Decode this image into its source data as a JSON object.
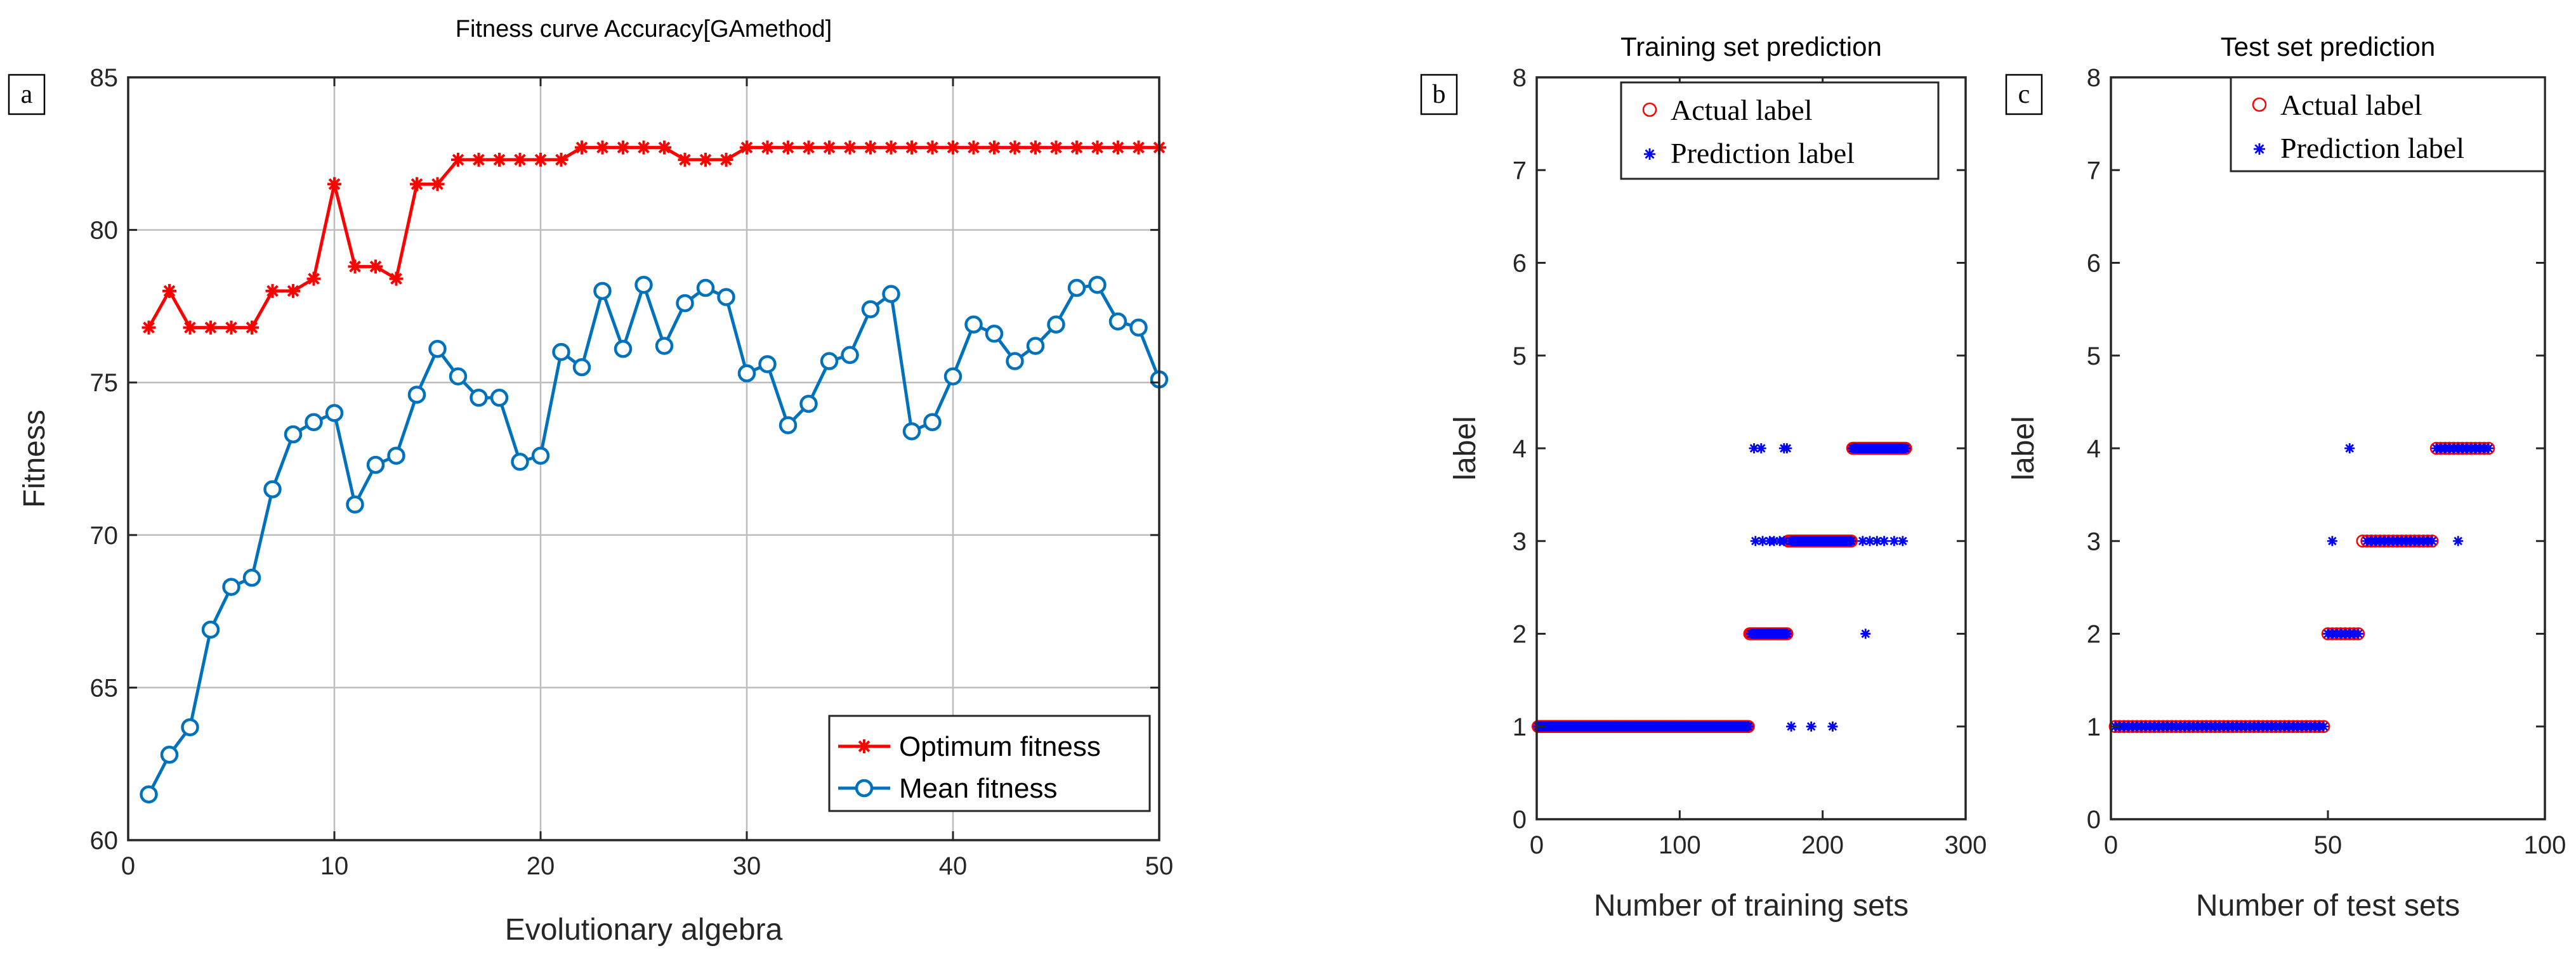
{
  "colors": {
    "optimum": "#ff0000",
    "mean": "#0072bd",
    "actual": "#ff0000",
    "prediction": "#0000ff",
    "grid": "#bdbdbd",
    "axis": "#262626"
  },
  "chart_data": [
    {
      "type": "line",
      "panel_label": "a",
      "title": "Fitness curve Accuracy[GAmethod]",
      "xlabel": "Evolutionary algebra",
      "ylabel": "Fitness",
      "xlim": [
        0,
        50
      ],
      "ylim": [
        60,
        85
      ],
      "xticks": [
        0,
        10,
        20,
        30,
        40,
        50
      ],
      "yticks": [
        60,
        65,
        70,
        75,
        80,
        85
      ],
      "xtick_labels": [
        "0",
        "10",
        "20",
        "30",
        "40",
        "50"
      ],
      "ytick_labels": [
        "60",
        "65",
        "70",
        "75",
        "80",
        "85"
      ],
      "grid": true,
      "legend_position": "bottom-right",
      "x": [
        1,
        2,
        3,
        4,
        5,
        6,
        7,
        8,
        9,
        10,
        11,
        12,
        13,
        14,
        15,
        16,
        17,
        18,
        19,
        20,
        21,
        22,
        23,
        24,
        25,
        26,
        27,
        28,
        29,
        30,
        31,
        32,
        33,
        34,
        35,
        36,
        37,
        38,
        39,
        40,
        41,
        42,
        43,
        44,
        45,
        46,
        47,
        48,
        49,
        50
      ],
      "series": [
        {
          "name": "Optimum fitness",
          "marker": "asterisk",
          "values": [
            76.8,
            78.0,
            76.8,
            76.8,
            76.8,
            76.8,
            78.0,
            78.0,
            78.4,
            81.5,
            78.8,
            78.8,
            78.4,
            81.5,
            81.5,
            82.3,
            82.3,
            82.3,
            82.3,
            82.3,
            82.3,
            82.7,
            82.7,
            82.7,
            82.7,
            82.7,
            82.3,
            82.3,
            82.3,
            82.7,
            82.7,
            82.7,
            82.7,
            82.7,
            82.7,
            82.7,
            82.7,
            82.7,
            82.7,
            82.7,
            82.7,
            82.7,
            82.7,
            82.7,
            82.7,
            82.7,
            82.7,
            82.7,
            82.7,
            82.7
          ]
        },
        {
          "name": "Mean fitness",
          "marker": "circle",
          "values": [
            61.5,
            62.8,
            63.7,
            66.9,
            68.3,
            68.6,
            71.5,
            73.3,
            73.7,
            74.0,
            71.0,
            72.3,
            72.6,
            74.6,
            76.1,
            75.2,
            74.5,
            74.5,
            72.4,
            72.6,
            76.0,
            75.5,
            78.0,
            76.1,
            78.2,
            76.2,
            77.6,
            78.1,
            77.8,
            75.3,
            75.6,
            73.6,
            74.3,
            75.7,
            75.9,
            77.4,
            77.9,
            73.4,
            73.7,
            75.2,
            76.9,
            76.6,
            75.7,
            76.2,
            76.9,
            78.1,
            78.2,
            77.0,
            76.8,
            75.1
          ]
        }
      ]
    },
    {
      "type": "scatter",
      "panel_label": "b",
      "title": "Training set prediction",
      "xlabel": "Number of training sets",
      "ylabel": "label",
      "xlim": [
        0,
        300
      ],
      "ylim": [
        0,
        8
      ],
      "xticks": [
        0,
        100,
        200,
        300
      ],
      "yticks": [
        0,
        1,
        2,
        3,
        4,
        5,
        6,
        7,
        8
      ],
      "xtick_labels": [
        "0",
        "100",
        "200",
        "300"
      ],
      "ytick_labels": [
        "0",
        "1",
        "2",
        "3",
        "4",
        "5",
        "6",
        "7",
        "8"
      ],
      "grid": false,
      "legend_position": "top-right",
      "series": [
        {
          "name": "Actual label",
          "marker": "circle",
          "segments": [
            {
              "y": 1,
              "x_start": 1,
              "x_end": 148
            },
            {
              "y": 2,
              "x_start": 149,
              "x_end": 175
            },
            {
              "y": 3,
              "x_start": 176,
              "x_end": 220
            },
            {
              "y": 4,
              "x_start": 221,
              "x_end": 258
            }
          ]
        },
        {
          "name": "Prediction label",
          "marker": "asterisk",
          "segments": [
            {
              "y": 1,
              "x_start": 1,
              "x_end": 148
            },
            {
              "y": 2,
              "x_start": 150,
              "x_end": 175
            },
            {
              "y": 3,
              "x_start": 178,
              "x_end": 220
            },
            {
              "y": 4,
              "x_start": 221,
              "x_end": 258
            }
          ],
          "outliers": [
            {
              "x": 152,
              "y": 4
            },
            {
              "x": 157,
              "y": 4
            },
            {
              "x": 173,
              "y": 4
            },
            {
              "x": 175,
              "y": 4
            },
            {
              "x": 153,
              "y": 3
            },
            {
              "x": 158,
              "y": 3
            },
            {
              "x": 163,
              "y": 3
            },
            {
              "x": 166,
              "y": 3
            },
            {
              "x": 170,
              "y": 3
            },
            {
              "x": 173,
              "y": 3
            },
            {
              "x": 228,
              "y": 3
            },
            {
              "x": 233,
              "y": 3
            },
            {
              "x": 238,
              "y": 3
            },
            {
              "x": 243,
              "y": 3
            },
            {
              "x": 250,
              "y": 3
            },
            {
              "x": 256,
              "y": 3
            },
            {
              "x": 230,
              "y": 2
            },
            {
              "x": 178,
              "y": 1
            },
            {
              "x": 192,
              "y": 1
            },
            {
              "x": 207,
              "y": 1
            }
          ]
        }
      ]
    },
    {
      "type": "scatter",
      "panel_label": "c",
      "title": "Test set prediction",
      "xlabel": "Number of test sets",
      "ylabel": "label",
      "xlim": [
        0,
        100
      ],
      "ylim": [
        0,
        8
      ],
      "xticks": [
        0,
        50,
        100
      ],
      "yticks": [
        0,
        1,
        2,
        3,
        4,
        5,
        6,
        7,
        8
      ],
      "xtick_labels": [
        "0",
        "50",
        "100"
      ],
      "ytick_labels": [
        "0",
        "1",
        "2",
        "3",
        "4",
        "5",
        "6",
        "7",
        "8"
      ],
      "grid": false,
      "legend_position": "top-right",
      "series": [
        {
          "name": "Actual label",
          "marker": "circle",
          "segments": [
            {
              "y": 1,
              "x_start": 1,
              "x_end": 49
            },
            {
              "y": 2,
              "x_start": 50,
              "x_end": 57
            },
            {
              "y": 3,
              "x_start": 58,
              "x_end": 74
            },
            {
              "y": 4,
              "x_start": 75,
              "x_end": 87
            }
          ]
        },
        {
          "name": "Prediction label",
          "marker": "asterisk",
          "segments": [
            {
              "y": 1,
              "x_start": 1,
              "x_end": 49
            },
            {
              "y": 2,
              "x_start": 50,
              "x_end": 57
            },
            {
              "y": 3,
              "x_start": 59,
              "x_end": 74
            },
            {
              "y": 4,
              "x_start": 75,
              "x_end": 87
            }
          ],
          "outliers": [
            {
              "x": 51,
              "y": 3
            },
            {
              "x": 55,
              "y": 4
            },
            {
              "x": 80,
              "y": 3
            }
          ]
        }
      ]
    }
  ]
}
